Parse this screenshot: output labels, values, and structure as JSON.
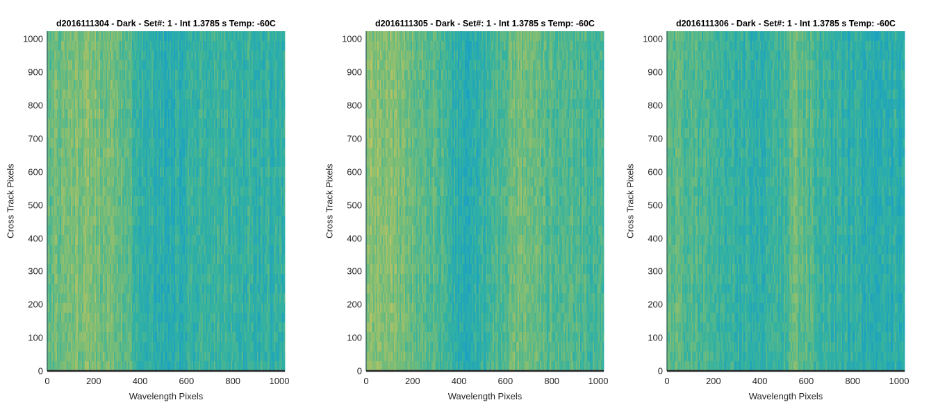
{
  "chart_data": [
    {
      "type": "heatmap",
      "title": "d2016111304 - Dark - Set#: 1 - Int 1.3785 s Temp: -60C",
      "xlabel": "Wavelength Pixels",
      "ylabel": "Cross Track Pixels",
      "xlim": [
        0,
        1024
      ],
      "ylim": [
        0,
        1024
      ],
      "xticks": [
        0,
        200,
        400,
        600,
        800,
        1000
      ],
      "yticks": [
        0,
        100,
        200,
        300,
        400,
        500,
        600,
        700,
        800,
        900,
        1000
      ],
      "column_profile": {
        "x": [
          0,
          100,
          200,
          300,
          350,
          400,
          500,
          600,
          700,
          800,
          900,
          1024
        ],
        "level": [
          0.55,
          0.72,
          0.68,
          0.62,
          0.5,
          0.32,
          0.22,
          0.28,
          0.36,
          0.34,
          0.3,
          0.3
        ]
      }
    },
    {
      "type": "heatmap",
      "title": "d2016111305 - Dark - Set#: 1 - Int 1.3785 s Temp: -60C",
      "xlabel": "Wavelength Pixels",
      "ylabel": "Cross Track Pixels",
      "xlim": [
        0,
        1024
      ],
      "ylim": [
        0,
        1024
      ],
      "xticks": [
        0,
        200,
        400,
        600,
        800,
        1000
      ],
      "yticks": [
        0,
        100,
        200,
        300,
        400,
        500,
        600,
        700,
        800,
        900,
        1000
      ],
      "column_profile": {
        "x": [
          0,
          100,
          200,
          300,
          350,
          400,
          500,
          600,
          650,
          700,
          800,
          900,
          1024
        ],
        "level": [
          0.78,
          0.74,
          0.6,
          0.5,
          0.35,
          0.2,
          0.28,
          0.52,
          0.64,
          0.6,
          0.5,
          0.45,
          0.42
        ]
      }
    },
    {
      "type": "heatmap",
      "title": "d2016111306 - Dark - Set#: 1 - Int 1.3785 s Temp: -60C",
      "xlabel": "Wavelength Pixels",
      "ylabel": "Cross Track Pixels",
      "xlim": [
        0,
        1024
      ],
      "ylim": [
        0,
        1024
      ],
      "xticks": [
        0,
        200,
        400,
        600,
        800,
        1000
      ],
      "yticks": [
        0,
        100,
        200,
        300,
        400,
        500,
        600,
        700,
        800,
        900,
        1000
      ],
      "column_profile": {
        "x": [
          0,
          100,
          200,
          300,
          400,
          500,
          550,
          600,
          700,
          800,
          900,
          1024
        ],
        "level": [
          0.58,
          0.48,
          0.4,
          0.3,
          0.26,
          0.42,
          0.58,
          0.5,
          0.32,
          0.26,
          0.25,
          0.25
        ]
      }
    }
  ]
}
